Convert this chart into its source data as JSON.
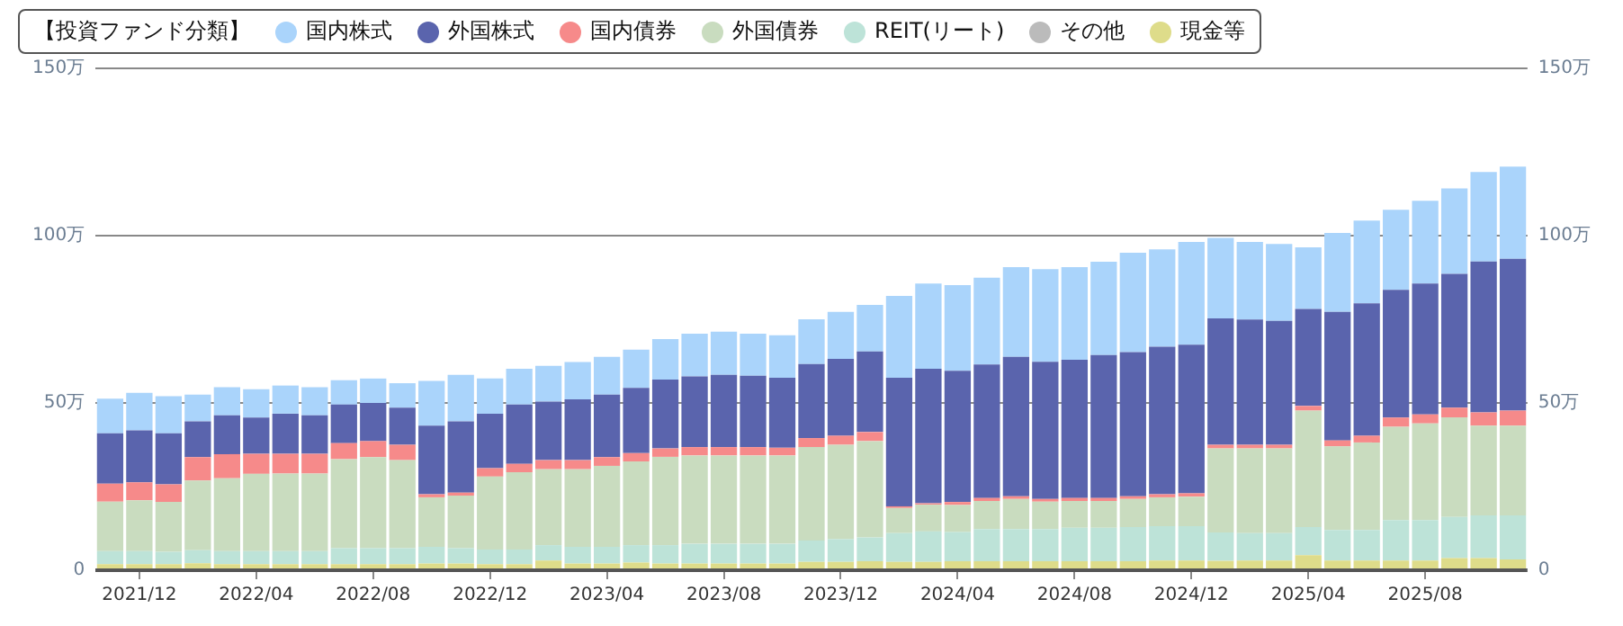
{
  "chart_data": {
    "type": "bar",
    "stacked": true,
    "legend_title": "【投資ファンド分類】",
    "legend": "top left",
    "grid": "y",
    "categories": [
      null,
      "2021/12",
      null,
      null,
      null,
      "2022/04",
      null,
      null,
      null,
      "2022/08",
      null,
      null,
      null,
      "2022/12",
      null,
      null,
      null,
      "2023/04",
      null,
      null,
      null,
      "2023/08",
      null,
      null,
      null,
      "2023/12",
      null,
      null,
      null,
      "2024/04",
      null,
      null,
      null,
      "2024/08",
      null,
      null,
      null,
      "2024/12",
      null,
      null,
      null,
      "2025/04",
      null,
      null,
      null,
      "2025/08",
      null,
      null,
      null
    ],
    "ylim": [
      0,
      150
    ],
    "yticks": [
      0,
      {
        "value": 50,
        "label": "50万"
      },
      {
        "value": 100,
        "label": "100万"
      },
      {
        "value": 150,
        "label": "150万"
      }
    ],
    "y2lim": [
      0,
      150
    ],
    "y2ticks": [
      0,
      {
        "value": 50,
        "label": "50万"
      },
      {
        "value": 100,
        "label": "100万"
      },
      {
        "value": 150,
        "label": "150万"
      }
    ],
    "series": [
      {
        "name": "現金等",
        "color": "#dedc8a",
        "values": [
          1.8,
          1.8,
          1.8,
          2.1,
          1.8,
          1.8,
          1.8,
          1.8,
          1.8,
          1.8,
          1.8,
          2,
          2,
          1.8,
          1.8,
          2.9,
          2,
          2,
          2.3,
          2,
          2,
          2,
          2,
          2,
          2.5,
          2.5,
          2.7,
          2.5,
          2.5,
          2.7,
          2.7,
          2.7,
          2.7,
          2.7,
          2.7,
          2.7,
          2.9,
          2.9,
          2.8,
          2.9,
          2.9,
          4.5,
          2.9,
          2.9,
          2.9,
          2.9,
          3.6,
          3.6,
          3.2
        ]
      },
      {
        "name": "その他",
        "color": "#bbbbbb",
        "values": [
          0,
          0,
          0,
          0,
          0,
          0,
          0,
          0,
          0,
          0,
          0,
          0,
          0,
          0,
          0,
          0,
          0,
          0,
          0,
          0,
          0,
          0,
          0,
          0,
          0,
          0,
          0,
          0,
          0,
          0,
          0,
          0,
          0,
          0,
          0,
          0,
          0,
          0,
          0,
          0,
          0,
          0,
          0,
          0,
          0,
          0,
          0,
          0,
          0
        ]
      },
      {
        "name": "REIT(リート)",
        "color": "#bde3d8",
        "values": [
          3.9,
          3.9,
          3.7,
          3.9,
          3.9,
          3.9,
          3.9,
          3.9,
          4.8,
          4.8,
          4.8,
          5,
          4.6,
          4.4,
          4.4,
          4.6,
          5,
          5,
          5.2,
          5.5,
          5.9,
          5.9,
          5.9,
          5.9,
          6.4,
          6.8,
          7.1,
          8.6,
          9.1,
          8.7,
          9.6,
          9.6,
          9.6,
          10,
          10,
          10.2,
          10.3,
          10.3,
          8.5,
          8.2,
          8.2,
          8.4,
          9.1,
          9.1,
          12.1,
          12.1,
          12.3,
          12.8,
          13.2
        ]
      },
      {
        "name": "外国債券",
        "color": "#c9dcbf",
        "values": [
          14.8,
          15.2,
          14.9,
          20.8,
          21.8,
          23.1,
          23.2,
          23.2,
          26.6,
          27.2,
          26.3,
          14.8,
          15.7,
          21.8,
          23.1,
          22.7,
          23.2,
          24.2,
          25,
          26.4,
          26.4,
          26.4,
          26.4,
          26.4,
          27.9,
          28.2,
          28.8,
          7.5,
          8,
          8.1,
          8.4,
          9,
          8.2,
          8,
          8,
          8.4,
          8.6,
          8.8,
          25.1,
          25.3,
          25.3,
          34.8,
          25,
          26.2,
          27.9,
          28.9,
          29.8,
          26.8,
          26.8
        ]
      },
      {
        "name": "国内債券",
        "color": "#f68a8a",
        "values": [
          5.4,
          5.4,
          5.3,
          7,
          7.2,
          6,
          5.9,
          5.9,
          4.8,
          4.8,
          4.6,
          0.9,
          0.9,
          2.5,
          2.5,
          2.7,
          2.7,
          2.6,
          2.5,
          2.5,
          2.5,
          2.5,
          2.5,
          2.3,
          2.7,
          2.7,
          2.7,
          0.5,
          0.4,
          0.9,
          0.9,
          0.8,
          0.8,
          0.9,
          0.9,
          0.8,
          0.9,
          1,
          1.1,
          1.1,
          1.1,
          1.4,
          1.8,
          2,
          2.7,
          2.7,
          2.9,
          4,
          4.5
        ]
      },
      {
        "name": "外国株式",
        "color": "#5a64ad",
        "values": [
          15,
          15.5,
          15.2,
          10.7,
          11.6,
          10.8,
          12,
          11.5,
          11.5,
          11.4,
          11.1,
          20.5,
          21.3,
          16.3,
          17.7,
          17.5,
          18.2,
          18.7,
          19.5,
          20.6,
          21.1,
          21.6,
          21.3,
          20.9,
          22.1,
          23,
          24.1,
          38.4,
          40.2,
          39.2,
          39.9,
          41.7,
          41,
          41.3,
          42.7,
          43.1,
          44.1,
          44.4,
          37.8,
          37.4,
          37,
          29,
          38.4,
          39.6,
          38.2,
          39.1,
          40,
          45.1,
          45.4
        ]
      },
      {
        "name": "国内株式",
        "color": "#aad4fb",
        "values": [
          10.4,
          11.2,
          11.1,
          8,
          8.4,
          8.5,
          8.4,
          8.4,
          7.3,
          7.3,
          7.3,
          13.4,
          13.9,
          10.5,
          10.7,
          10.7,
          11.1,
          11.3,
          11.4,
          12.1,
          12.8,
          12.9,
          12.6,
          12.7,
          13.4,
          14,
          13.9,
          24.5,
          25.5,
          25.6,
          25.9,
          26.8,
          27.7,
          27.7,
          27.9,
          29.7,
          29.1,
          30.7,
          24,
          23.2,
          23,
          18.4,
          23.6,
          24.7,
          23.9,
          24.7,
          25.5,
          26.7,
          27.5
        ]
      }
    ]
  }
}
